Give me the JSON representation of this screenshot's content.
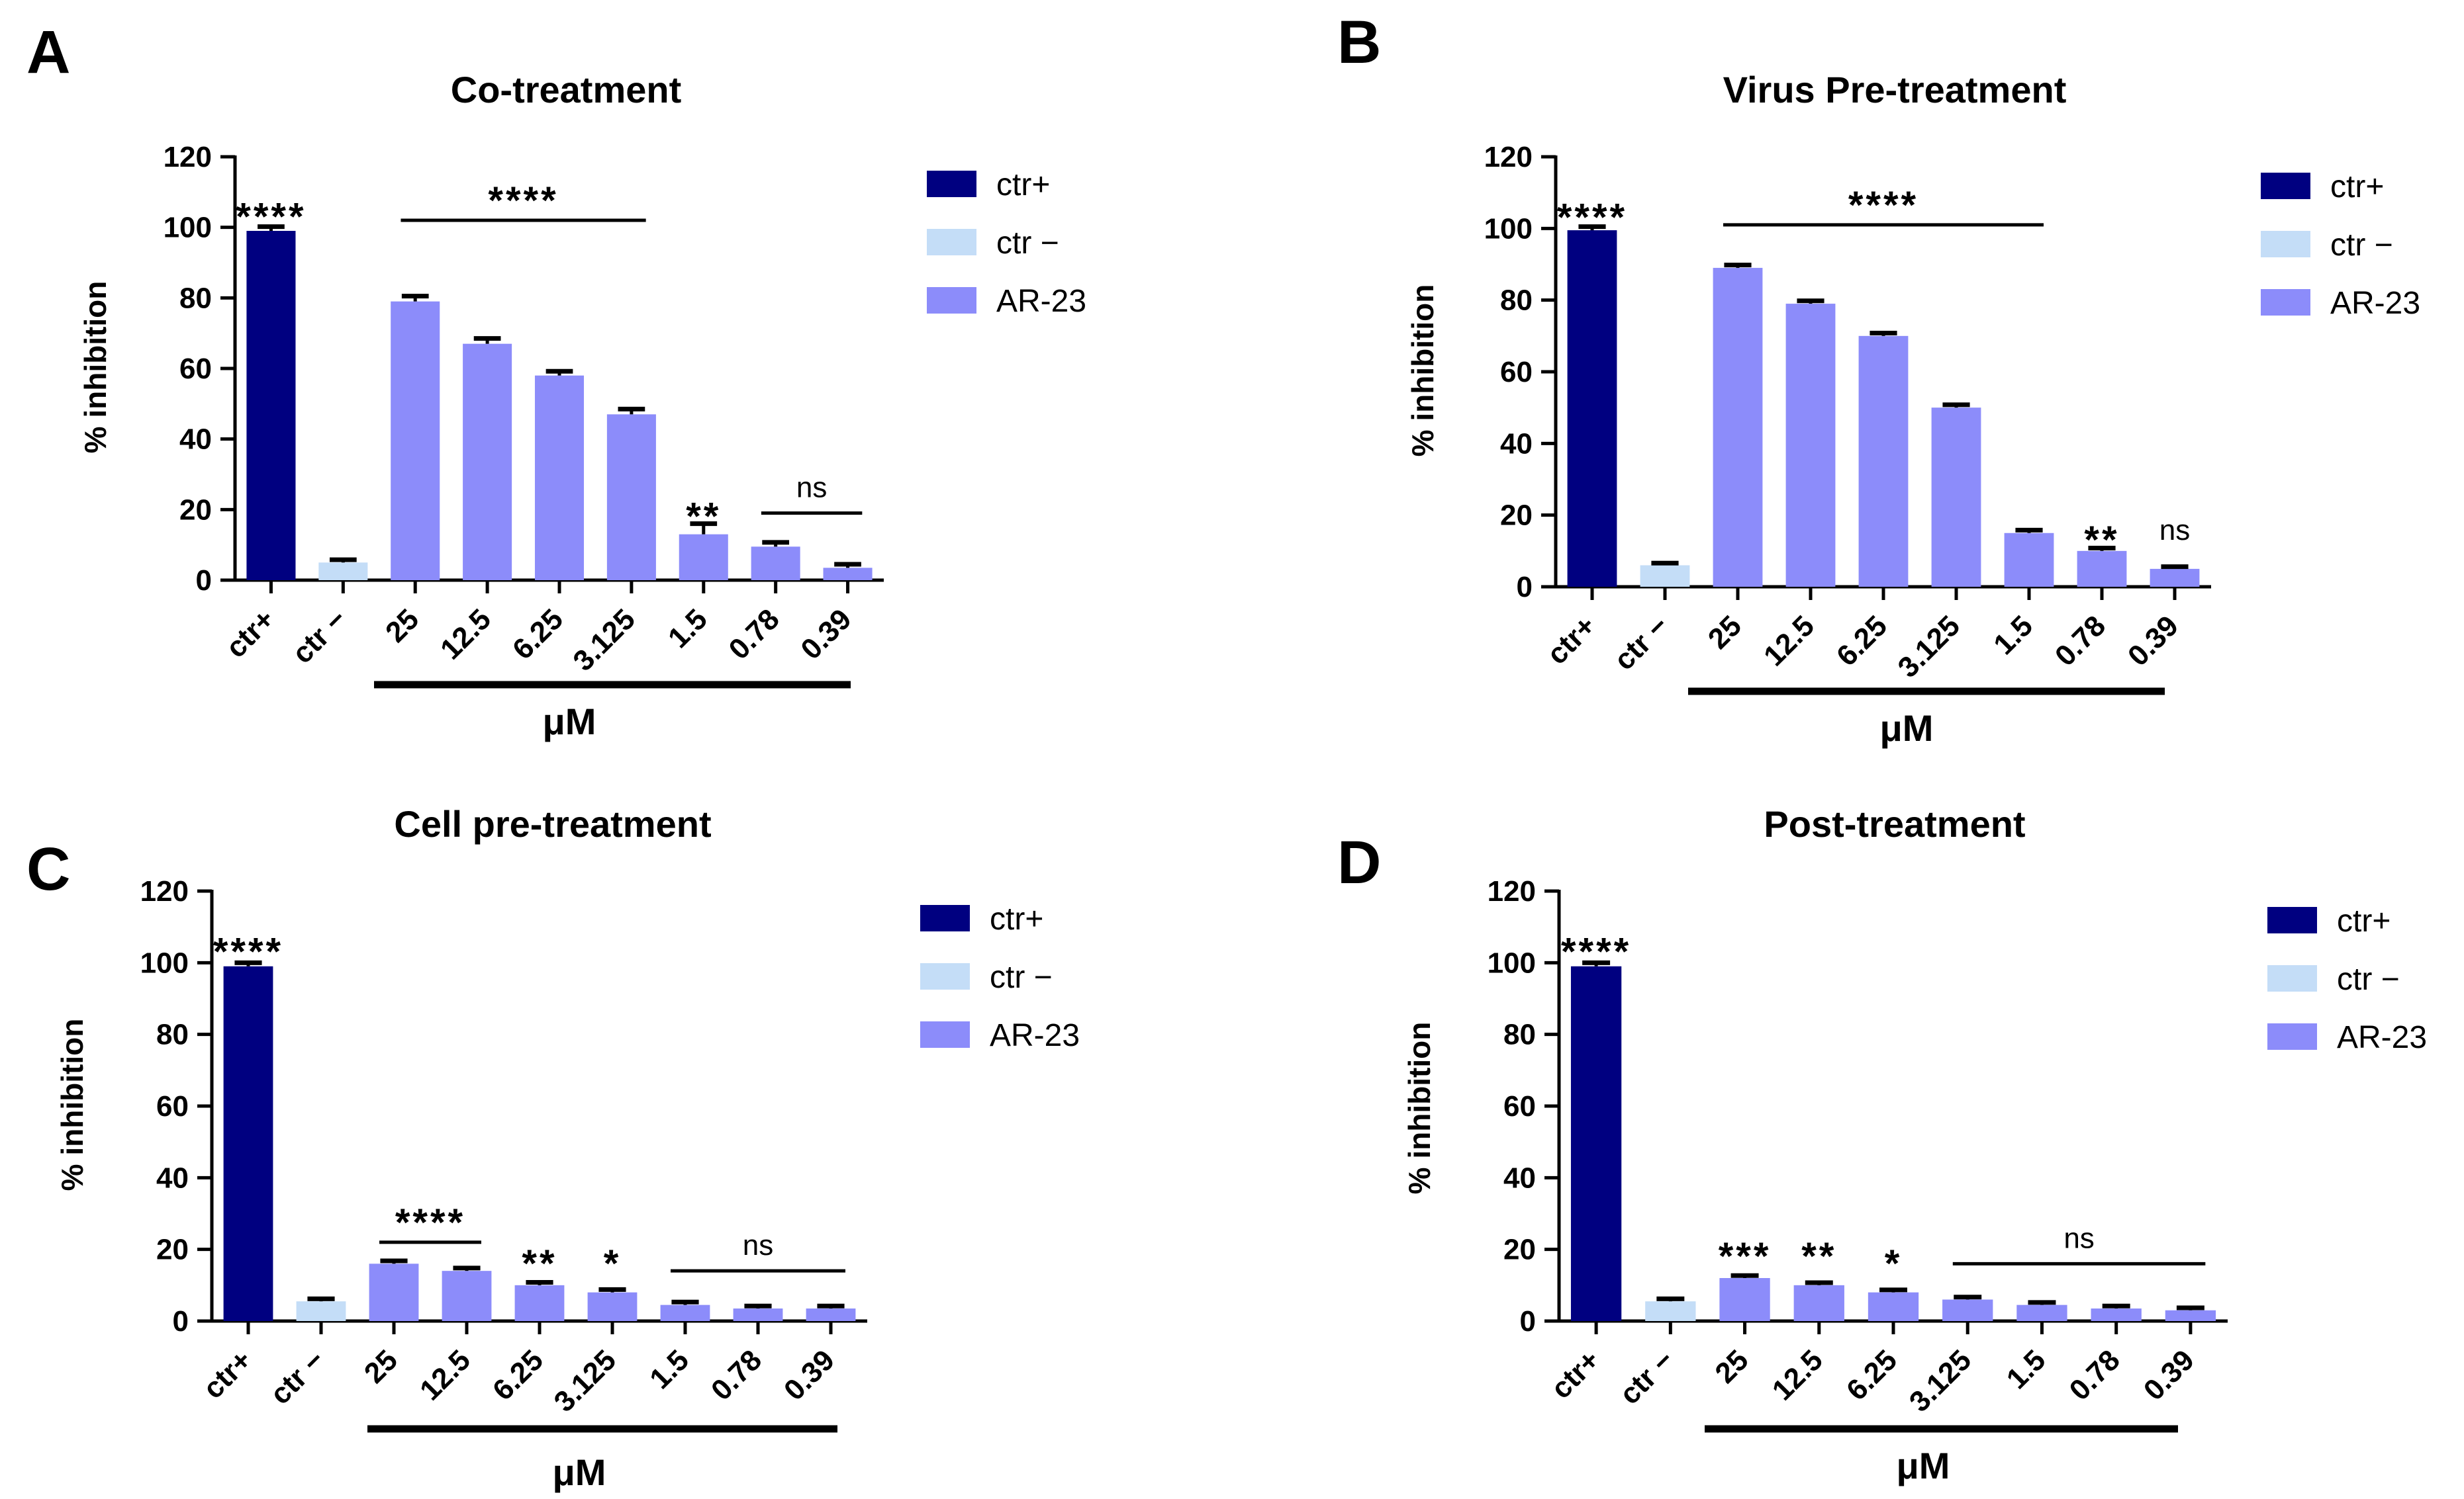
{
  "figure": {
    "colors": {
      "ctr_pos": "#000080",
      "ctr_neg": "#C4DDF7",
      "ar23": "#8C8CFA",
      "axis": "#000000"
    },
    "legend": [
      {
        "key": "ctr_pos",
        "label": "ctr+"
      },
      {
        "key": "ctr_neg",
        "label": "ctr −"
      },
      {
        "key": "ar23",
        "label": "AR-23"
      }
    ],
    "unit_label": "μM",
    "ylabel": "% inhibition"
  },
  "chart_data": [
    {
      "panel": "A",
      "type": "bar",
      "title": "Co-treatment",
      "ylabel": "% inhibition",
      "xlabel": "μM",
      "ylim": [
        0,
        120
      ],
      "yticks": [
        0,
        20,
        40,
        60,
        80,
        100,
        120
      ],
      "categories": [
        "ctr+",
        "ctr −",
        "25",
        "12.5",
        "6.25",
        "3.125",
        "1.5",
        "0.78",
        "0.39"
      ],
      "groups": [
        "ctr_pos",
        "ctr_neg",
        "ar23",
        "ar23",
        "ar23",
        "ar23",
        "ar23",
        "ar23",
        "ar23"
      ],
      "values": [
        99,
        5,
        79,
        67,
        58,
        47,
        13,
        9.5,
        3.5
      ],
      "errors": [
        1.2,
        0.8,
        1.5,
        1.5,
        1.2,
        1.5,
        3,
        1.2,
        1
      ],
      "significance": [
        {
          "label": "****",
          "from": 0,
          "to": 0,
          "line": false,
          "y": 104,
          "size": "large"
        },
        {
          "label": "****",
          "from": 2,
          "to": 5,
          "line": true,
          "y": 102,
          "size": "large"
        },
        {
          "label": "**",
          "from": 6,
          "to": 6,
          "line": false,
          "y": 19,
          "size": "large"
        },
        {
          "label": "ns",
          "from": 7,
          "to": 8,
          "line": true,
          "y": 19,
          "size": "small"
        }
      ]
    },
    {
      "panel": "B",
      "type": "bar",
      "title": "Virus Pre-treatment",
      "ylabel": "% inhibition",
      "xlabel": "μM",
      "ylim": [
        0,
        120
      ],
      "yticks": [
        0,
        20,
        40,
        60,
        80,
        100,
        120
      ],
      "categories": [
        "ctr+",
        "ctr −",
        "25",
        "12.5",
        "6.25",
        "3.125",
        "1.5",
        "0.78",
        "0.39"
      ],
      "groups": [
        "ctr_pos",
        "ctr_neg",
        "ar23",
        "ar23",
        "ar23",
        "ar23",
        "ar23",
        "ar23",
        "ar23"
      ],
      "values": [
        99.5,
        6,
        89,
        79,
        70,
        50,
        15,
        10,
        5
      ],
      "errors": [
        1,
        0.6,
        0.8,
        0.8,
        0.8,
        0.8,
        0.8,
        0.8,
        0.6
      ],
      "significance": [
        {
          "label": "****",
          "from": 0,
          "to": 0,
          "line": false,
          "y": 104,
          "size": "large"
        },
        {
          "label": "****",
          "from": 2,
          "to": 6,
          "line": true,
          "y": 101,
          "size": "large"
        },
        {
          "label": "**",
          "from": 7,
          "to": 7,
          "line": false,
          "y": 14,
          "size": "large"
        },
        {
          "label": "ns",
          "from": 8,
          "to": 8,
          "line": false,
          "y": 15,
          "size": "small"
        }
      ]
    },
    {
      "panel": "C",
      "type": "bar",
      "title": "Cell pre-treatment",
      "ylabel": "% inhibition",
      "xlabel": "μM",
      "ylim": [
        0,
        120
      ],
      "yticks": [
        0,
        20,
        40,
        60,
        80,
        100,
        120
      ],
      "categories": [
        "ctr+",
        "ctr −",
        "25",
        "12.5",
        "6.25",
        "3.125",
        "1.5",
        "0.78",
        "0.39"
      ],
      "groups": [
        "ctr_pos",
        "ctr_neg",
        "ar23",
        "ar23",
        "ar23",
        "ar23",
        "ar23",
        "ar23",
        "ar23"
      ],
      "values": [
        99,
        5.5,
        16,
        14,
        10,
        8,
        4.5,
        3.5,
        3.5
      ],
      "errors": [
        1,
        0.7,
        0.8,
        0.8,
        0.8,
        0.8,
        0.8,
        0.7,
        0.7
      ],
      "significance": [
        {
          "label": "****",
          "from": 0,
          "to": 0,
          "line": false,
          "y": 104,
          "size": "large"
        },
        {
          "label": "****",
          "from": 2,
          "to": 3,
          "line": true,
          "y": 22,
          "size": "large"
        },
        {
          "label": "**",
          "from": 4,
          "to": 4,
          "line": false,
          "y": 17,
          "size": "large"
        },
        {
          "label": "*",
          "from": 5,
          "to": 5,
          "line": false,
          "y": 17,
          "size": "large"
        },
        {
          "label": "ns",
          "from": 6,
          "to": 8,
          "line": true,
          "y": 14,
          "size": "small"
        }
      ]
    },
    {
      "panel": "D",
      "type": "bar",
      "title": "Post-treatment",
      "ylabel": "% inhibition",
      "xlabel": "μM",
      "ylim": [
        0,
        120
      ],
      "yticks": [
        0,
        20,
        40,
        60,
        80,
        100,
        120
      ],
      "categories": [
        "ctr+",
        "ctr −",
        "25",
        "12.5",
        "6.25",
        "3.125",
        "1.5",
        "0.78",
        "0.39"
      ],
      "groups": [
        "ctr_pos",
        "ctr_neg",
        "ar23",
        "ar23",
        "ar23",
        "ar23",
        "ar23",
        "ar23",
        "ar23"
      ],
      "values": [
        99,
        5.5,
        12,
        10,
        8,
        6,
        4.5,
        3.5,
        3
      ],
      "errors": [
        1,
        0.7,
        0.7,
        0.7,
        0.7,
        0.7,
        0.7,
        0.7,
        0.7
      ],
      "significance": [
        {
          "label": "****",
          "from": 0,
          "to": 0,
          "line": false,
          "y": 104,
          "size": "large"
        },
        {
          "label": "***",
          "from": 2,
          "to": 2,
          "line": false,
          "y": 19,
          "size": "large"
        },
        {
          "label": "**",
          "from": 3,
          "to": 3,
          "line": false,
          "y": 19,
          "size": "large"
        },
        {
          "label": "*",
          "from": 4,
          "to": 4,
          "line": false,
          "y": 17,
          "size": "large"
        },
        {
          "label": "ns",
          "from": 5,
          "to": 8,
          "line": true,
          "y": 16,
          "size": "small"
        }
      ]
    }
  ]
}
